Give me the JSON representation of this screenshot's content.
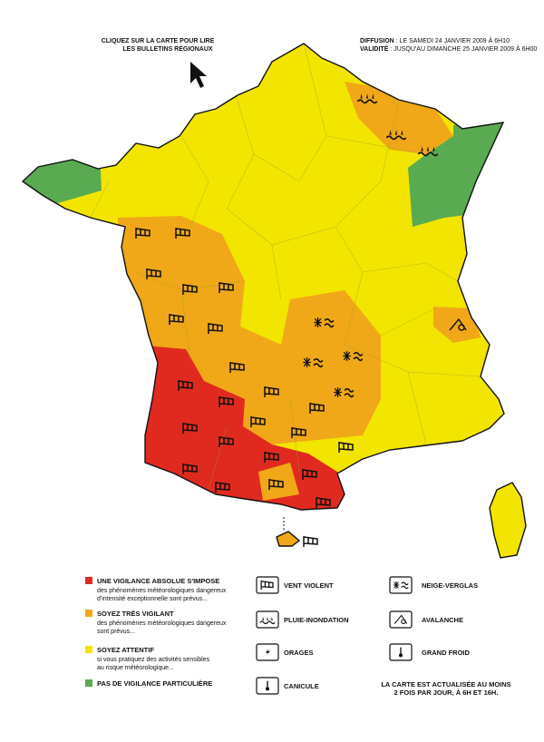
{
  "header": {
    "instruction": [
      "CLIQUEZ SUR LA CARTE POUR LIRE",
      "LES BULLETINS RÉGIONAUX"
    ],
    "diffusion": {
      "label": "DIFFUSION",
      "text": " : LE SAMEDI 24 JANVIER 2009 À 6H10"
    },
    "validite": {
      "label": "VALIDITÉ",
      "text": " : JUSQU'AU DIMANCHE 25 JANVIER 2009 À 6H00"
    }
  },
  "legend": {
    "levels": [
      {
        "title": "UNE VIGILANCE ABSOLUE S'IMPOSE",
        "description": [
          "des phénomènes météorologiques dangereux",
          "d'intensité exceptionnelle sont prévus..."
        ]
      },
      {
        "title": "SOYEZ TRÈS VIGILANT",
        "description": [
          "des phénomènes météorologiques dangereux",
          "sont prévus..."
        ]
      },
      {
        "title": "SOYEZ ATTENTIF",
        "description": [
          "si vous pratiquez des activités sensibles",
          "au risque météorologique..."
        ]
      },
      {
        "title": "PAS DE VIGILANCE PARTICULIÈRE",
        "description": []
      }
    ],
    "phenomena": [
      "VENT VIOLENT",
      "PLUIE-INONDATION",
      "ORAGES",
      "CANICULE",
      "NEIGE-VERGLAS",
      "AVALANCHE",
      "GRAND FROID"
    ],
    "note": [
      "LA CARTE EST ACTUALISÉE AU MOINS",
      "2 FOIS PAR JOUR, À 6H ET 16H."
    ]
  }
}
